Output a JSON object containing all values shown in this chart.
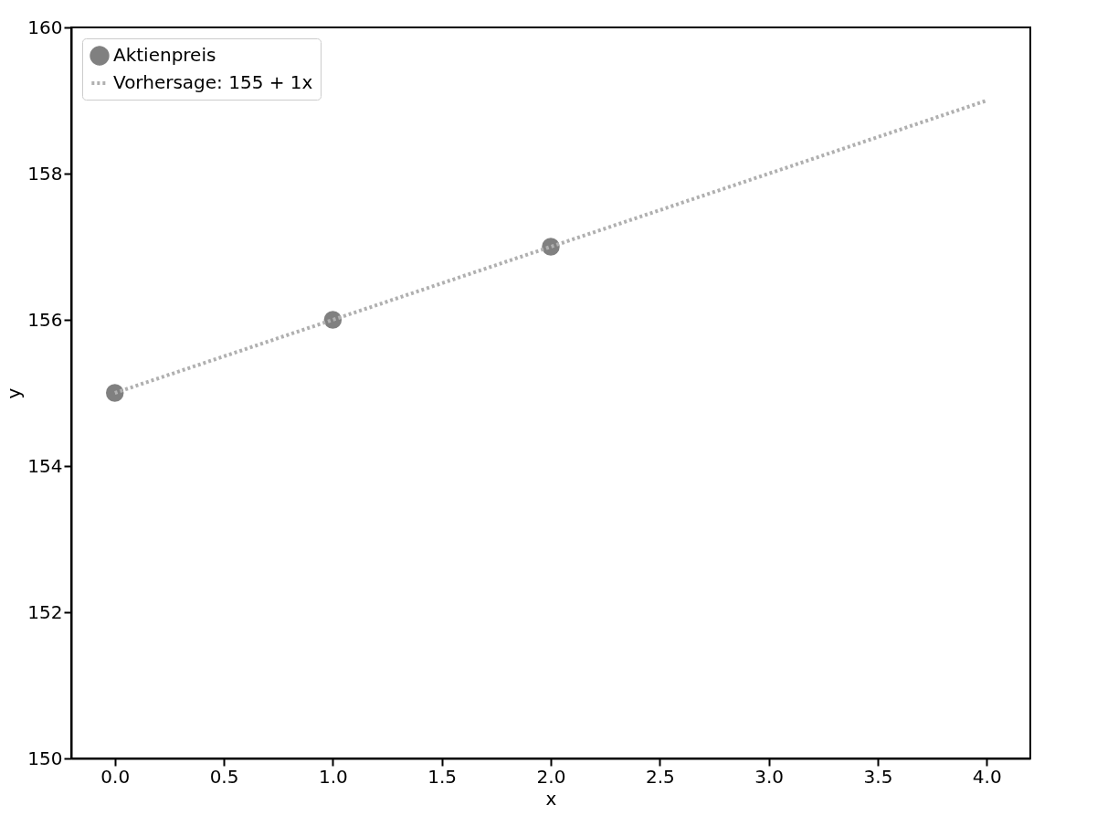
{
  "chart_data": {
    "type": "scatter",
    "xlabel": "x",
    "ylabel": "y",
    "xlim": [
      -0.2,
      4.2
    ],
    "xticks": [
      {
        "value": 0,
        "label": "0.0"
      },
      {
        "value": 0.5,
        "label": "0.5"
      },
      {
        "value": 1,
        "label": "1.0"
      },
      {
        "value": 1.5,
        "label": "1.5"
      },
      {
        "value": 2,
        "label": "2.0"
      },
      {
        "value": 2.5,
        "label": "2.5"
      },
      {
        "value": 3,
        "label": "3.0"
      },
      {
        "value": 3.5,
        "label": "3.5"
      },
      {
        "value": 4,
        "label": "4.0"
      }
    ],
    "ylim": [
      150,
      160
    ],
    "yticks": [
      150,
      152,
      154,
      156,
      158,
      160
    ],
    "grid": false,
    "legend": "top left",
    "series": [
      {
        "name": "Aktienpreis",
        "color": "#808080",
        "marker": "circle",
        "x": [
          0,
          1,
          2
        ],
        "values": [
          155,
          156,
          157
        ]
      },
      {
        "name": "Vorhersage: 155 + 1x",
        "type": "line",
        "color": "#b0b0b0",
        "line_style": "dotted",
        "x": [
          0,
          4
        ],
        "values": [
          155,
          159
        ]
      }
    ]
  }
}
